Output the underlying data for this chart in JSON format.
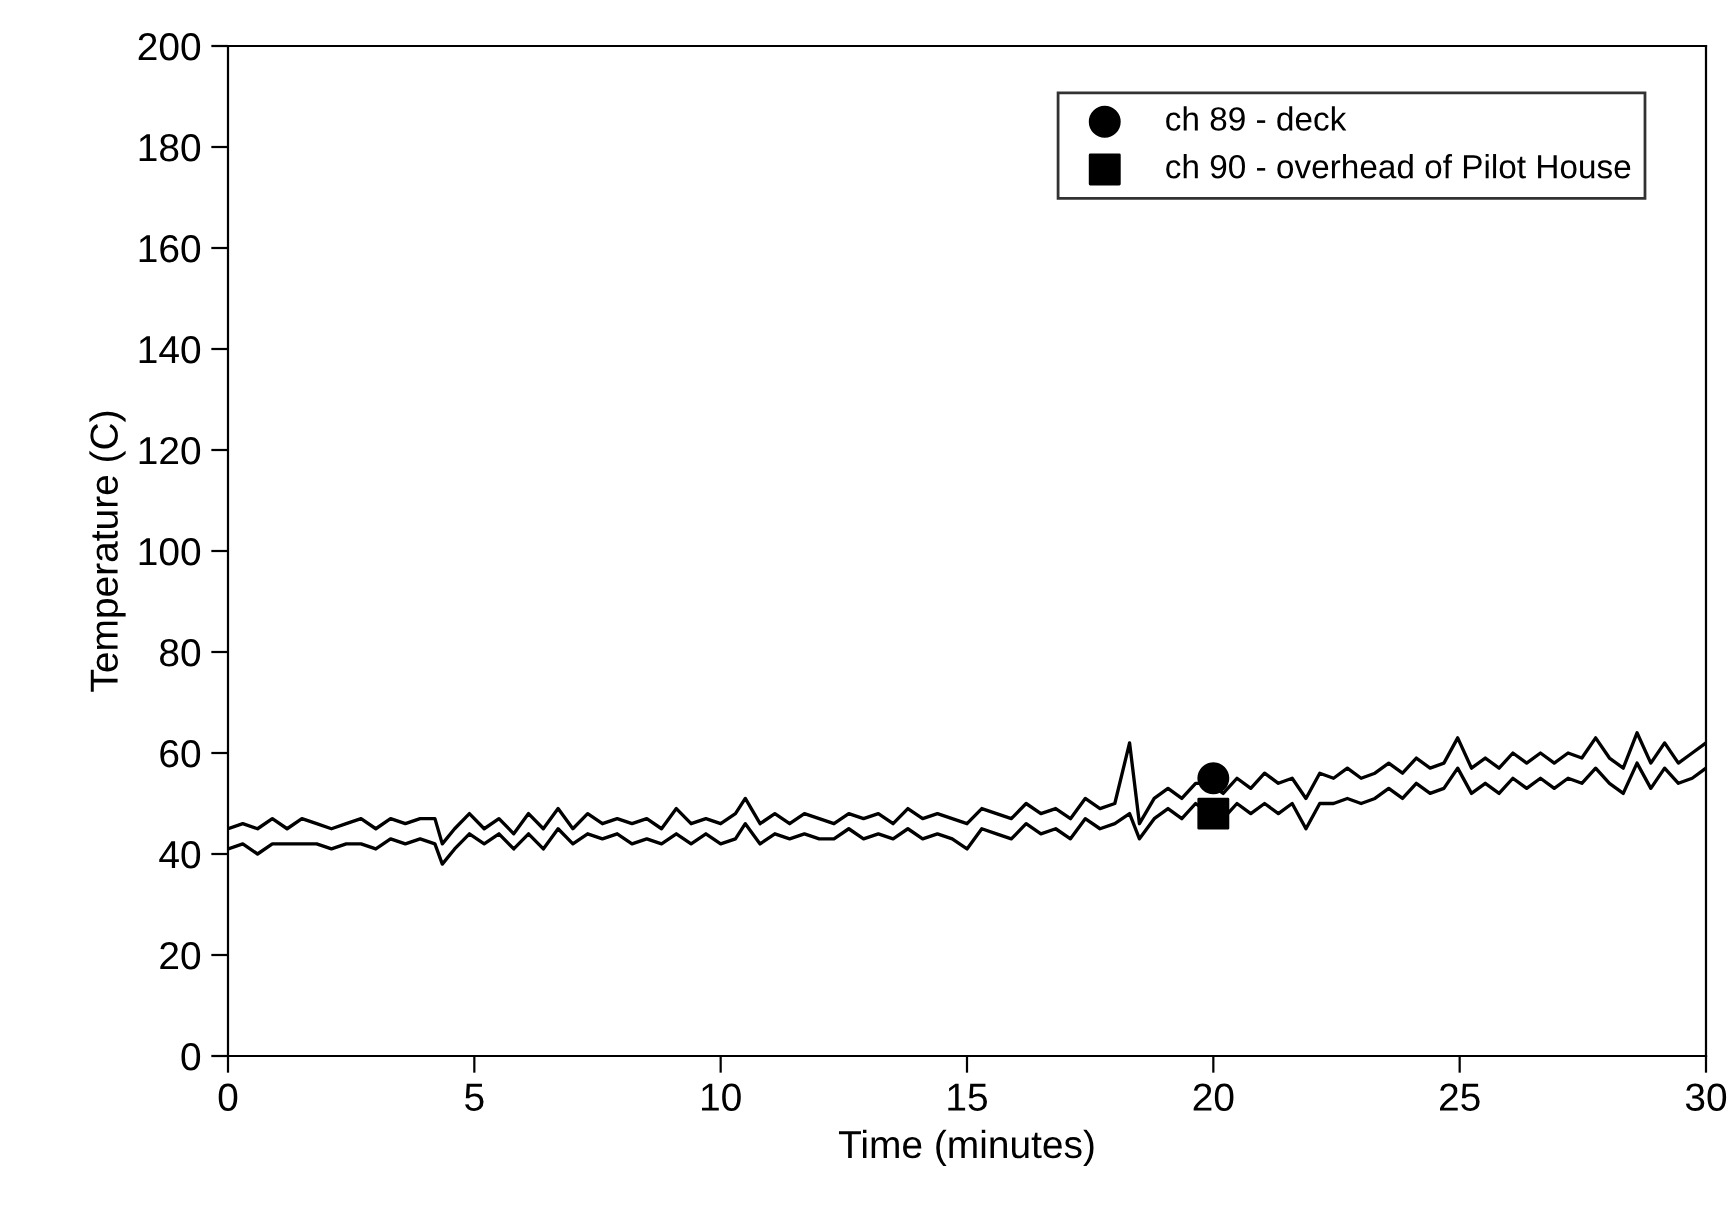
{
  "chart_data": {
    "type": "line",
    "xlabel": "Time (minutes)",
    "ylabel": "Temperature (C)",
    "xlim": [
      0,
      30
    ],
    "ylim": [
      0,
      200
    ],
    "xticks": [
      0,
      5,
      10,
      15,
      20,
      25,
      30
    ],
    "yticks": [
      0,
      20,
      40,
      60,
      80,
      100,
      120,
      140,
      160,
      180,
      200
    ],
    "grid": false,
    "legend": "top right",
    "x": [
      0,
      0.3,
      0.6,
      0.9,
      1.2,
      1.5,
      1.8,
      2.1,
      2.4,
      2.7,
      3.0,
      3.3,
      3.6,
      3.9,
      4.2,
      4.35,
      4.6,
      4.9,
      5.2,
      5.5,
      5.8,
      6.1,
      6.4,
      6.7,
      7.0,
      7.3,
      7.6,
      7.9,
      8.2,
      8.5,
      8.8,
      9.1,
      9.4,
      9.7,
      10.0,
      10.3,
      10.5,
      10.8,
      11.1,
      11.4,
      11.7,
      12.0,
      12.3,
      12.6,
      12.9,
      13.2,
      13.5,
      13.8,
      14.1,
      14.4,
      14.7,
      15.0,
      15.3,
      15.6,
      15.9,
      16.2,
      16.5,
      16.8,
      17.1,
      17.4,
      17.7,
      18.0,
      18.3,
      18.5,
      18.8,
      19.08,
      19.36,
      19.64,
      19.92,
      20.2,
      20.48,
      20.76,
      21.04,
      21.32,
      21.6,
      21.88,
      22.16,
      22.44,
      22.72,
      23.0,
      23.28,
      23.56,
      23.84,
      24.12,
      24.4,
      24.68,
      24.96,
      25.24,
      25.52,
      25.8,
      26.08,
      26.36,
      26.64,
      26.92,
      27.2,
      27.48,
      27.76,
      28.04,
      28.32,
      28.6,
      28.88,
      29.16,
      29.44,
      29.72,
      30.0
    ],
    "series": [
      {
        "color": "#000000",
        "marker": "none",
        "values": [
          45,
          46,
          45,
          47,
          45,
          47,
          46,
          45,
          46,
          47,
          45,
          47,
          46,
          47,
          47,
          42,
          45,
          48,
          45,
          47,
          44,
          48,
          45,
          49,
          45,
          48,
          46,
          47,
          46,
          47,
          45,
          49,
          46,
          47,
          46,
          48,
          51,
          46,
          48,
          46,
          48,
          47,
          46,
          48,
          47,
          48,
          46,
          49,
          47,
          48,
          47,
          46,
          49,
          48,
          47,
          50,
          48,
          49,
          47,
          51,
          49,
          50,
          62,
          46,
          51,
          53,
          51,
          54,
          54,
          52,
          55,
          53,
          56,
          54,
          55,
          51,
          56,
          55,
          57,
          55,
          56,
          58,
          56,
          59,
          57,
          58,
          63,
          57,
          59,
          57,
          60,
          58,
          60,
          58,
          60,
          59,
          63,
          59,
          57,
          64,
          58,
          62,
          58,
          60,
          62
        ]
      },
      {
        "color": "#000000",
        "marker": "none",
        "values": [
          41,
          42,
          40,
          42,
          42,
          42,
          42,
          41,
          42,
          42,
          41,
          43,
          42,
          43,
          42,
          38,
          41,
          44,
          42,
          44,
          41,
          44,
          41,
          45,
          42,
          44,
          43,
          44,
          42,
          43,
          42,
          44,
          42,
          44,
          42,
          43,
          46,
          42,
          44,
          43,
          44,
          43,
          43,
          45,
          43,
          44,
          43,
          45,
          43,
          44,
          43,
          41,
          45,
          44,
          43,
          46,
          44,
          45,
          43,
          47,
          45,
          46,
          48,
          43,
          47,
          49,
          47,
          50,
          48,
          47,
          50,
          48,
          50,
          48,
          50,
          45,
          50,
          50,
          51,
          50,
          51,
          53,
          51,
          54,
          52,
          53,
          57,
          52,
          54,
          52,
          55,
          53,
          55,
          53,
          55,
          54,
          57,
          54,
          52,
          58,
          53,
          57,
          54,
          55,
          57
        ]
      },
      {
        "type": "scatter",
        "name": "ch 89 - deck",
        "color": "#000000",
        "marker": "circle",
        "x": [
          20
        ],
        "values": [
          55
        ]
      },
      {
        "type": "scatter",
        "name": "ch 90 - overhead of Pilot House",
        "color": "#000000",
        "marker": "square",
        "x": [
          20
        ],
        "values": [
          48
        ]
      }
    ]
  }
}
